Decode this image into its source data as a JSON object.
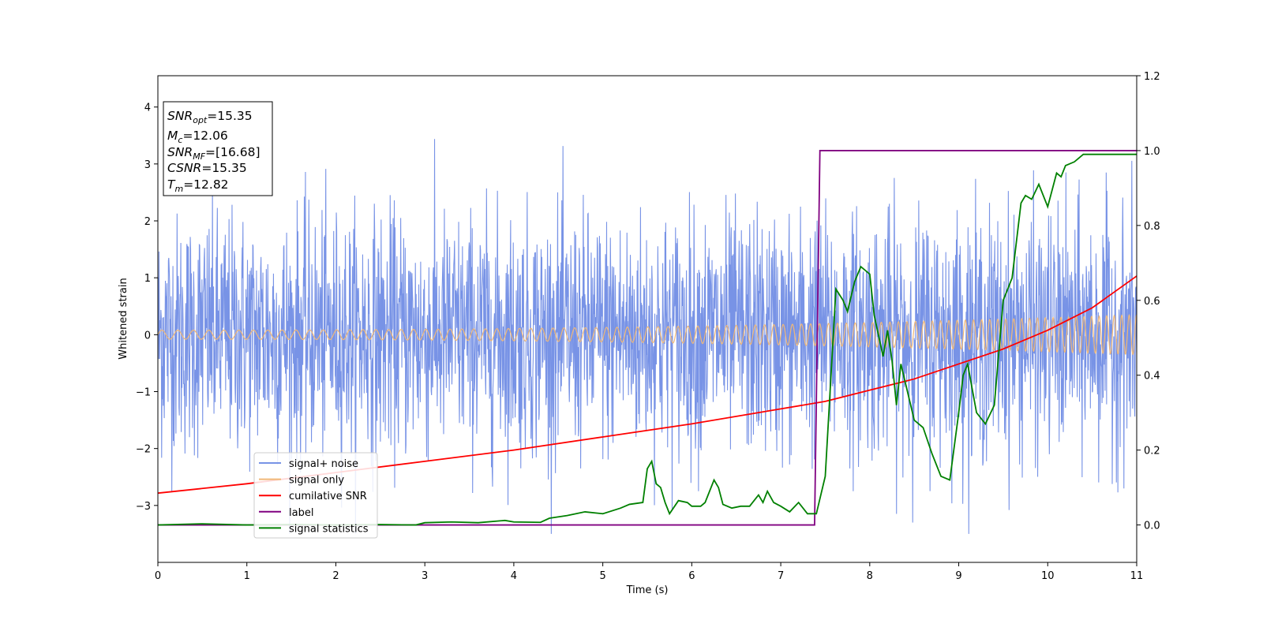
{
  "chart_data": {
    "type": "line",
    "xlabel": "Time (s)",
    "ylabel": "Whitened strain",
    "xlim": [
      0,
      11
    ],
    "ylim_left": [
      -4,
      4.55
    ],
    "ylim_right": [
      -0.1,
      1.2
    ],
    "xticks": [
      0,
      1,
      2,
      3,
      4,
      5,
      6,
      7,
      8,
      9,
      10,
      11
    ],
    "yticks_left": [
      -3,
      -2,
      -1,
      0,
      1,
      2,
      3,
      4
    ],
    "yticks_right": [
      0.0,
      0.2,
      0.4,
      0.6,
      0.8,
      1.0,
      1.2
    ],
    "ytick_labels_left": [
      "−3",
      "−2",
      "−1",
      "0",
      "1",
      "2",
      "3",
      "4"
    ],
    "ytick_labels_right": [
      "0.0",
      "0.2",
      "0.4",
      "0.6",
      "0.8",
      "1.0",
      "1.2"
    ],
    "legend_position": "lower-left",
    "annotation": {
      "position": "upper-left",
      "lines": [
        {
          "base": "SNR",
          "sub": "opt",
          "value": "=15.35"
        },
        {
          "base": "M",
          "sub": "c",
          "value": "=12.06"
        },
        {
          "base": "SNR",
          "sub": "MF",
          "value": "=[16.68]"
        },
        {
          "base": "CSNR",
          "sub": "",
          "value": "=15.35"
        },
        {
          "base": "T",
          "sub": "m",
          "value": "=12.82"
        }
      ]
    },
    "series": [
      {
        "name": "signal+ noise",
        "axis": "left",
        "color": "#7893e6",
        "description_kind": "noise",
        "noise_std": 1.05,
        "noise_peak": 3.5
      },
      {
        "name": "signal only",
        "axis": "left",
        "color": "#f0b878",
        "description_kind": "chirp",
        "amplitude_start": 0.08,
        "amplitude_end": 0.35,
        "cycles_per_second_start": 5.5,
        "cycles_per_second_end": 12
      },
      {
        "name": "cumilative SNR",
        "axis": "right",
        "color": "#ff0000",
        "x": [
          0,
          1,
          2,
          3,
          4,
          5,
          6,
          7,
          7.5,
          8,
          8.5,
          9,
          9.5,
          10,
          10.5,
          11
        ],
        "y": [
          0.085,
          0.11,
          0.14,
          0.17,
          0.2,
          0.235,
          0.27,
          0.31,
          0.33,
          0.36,
          0.39,
          0.43,
          0.47,
          0.52,
          0.58,
          0.665
        ]
      },
      {
        "name": "label",
        "axis": "right",
        "color": "#800080",
        "x": [
          0,
          7.38,
          7.44,
          11
        ],
        "y": [
          0,
          0,
          1,
          1
        ]
      },
      {
        "name": "signal statistics",
        "axis": "right",
        "color": "#008000",
        "x": [
          0,
          0.5,
          1,
          1.5,
          2,
          2.5,
          2.9,
          3.0,
          3.3,
          3.6,
          3.9,
          4.0,
          4.3,
          4.4,
          4.6,
          4.8,
          5.0,
          5.2,
          5.3,
          5.45,
          5.5,
          5.55,
          5.6,
          5.65,
          5.7,
          5.75,
          5.85,
          5.95,
          6.0,
          6.1,
          6.15,
          6.25,
          6.3,
          6.35,
          6.45,
          6.55,
          6.65,
          6.75,
          6.8,
          6.85,
          6.92,
          7.0,
          7.1,
          7.2,
          7.3,
          7.4,
          7.5,
          7.62,
          7.7,
          7.75,
          7.83,
          7.9,
          8.0,
          8.05,
          8.15,
          8.2,
          8.25,
          8.3,
          8.35,
          8.4,
          8.5,
          8.6,
          8.7,
          8.8,
          8.9,
          9.0,
          9.05,
          9.1,
          9.2,
          9.3,
          9.4,
          9.5,
          9.55,
          9.6,
          9.7,
          9.75,
          9.82,
          9.9,
          10.0,
          10.1,
          10.15,
          10.2,
          10.3,
          10.4,
          10.5,
          10.6,
          10.7,
          10.8,
          10.9,
          11.0
        ],
        "y": [
          0.0,
          0.003,
          0.0,
          0.001,
          0.0,
          0.001,
          0.0,
          0.006,
          0.008,
          0.006,
          0.012,
          0.008,
          0.007,
          0.018,
          0.025,
          0.035,
          0.03,
          0.045,
          0.055,
          0.06,
          0.15,
          0.17,
          0.11,
          0.1,
          0.06,
          0.03,
          0.065,
          0.06,
          0.05,
          0.05,
          0.06,
          0.12,
          0.1,
          0.055,
          0.045,
          0.05,
          0.05,
          0.08,
          0.06,
          0.09,
          0.06,
          0.05,
          0.035,
          0.06,
          0.03,
          0.03,
          0.13,
          0.63,
          0.6,
          0.57,
          0.65,
          0.69,
          0.67,
          0.56,
          0.45,
          0.52,
          0.44,
          0.32,
          0.43,
          0.38,
          0.28,
          0.26,
          0.19,
          0.13,
          0.12,
          0.3,
          0.4,
          0.43,
          0.3,
          0.27,
          0.32,
          0.6,
          0.63,
          0.66,
          0.86,
          0.88,
          0.87,
          0.91,
          0.85,
          0.94,
          0.93,
          0.96,
          0.97,
          0.99,
          0.99,
          0.99,
          0.99,
          0.99,
          0.99,
          0.99
        ]
      }
    ]
  }
}
